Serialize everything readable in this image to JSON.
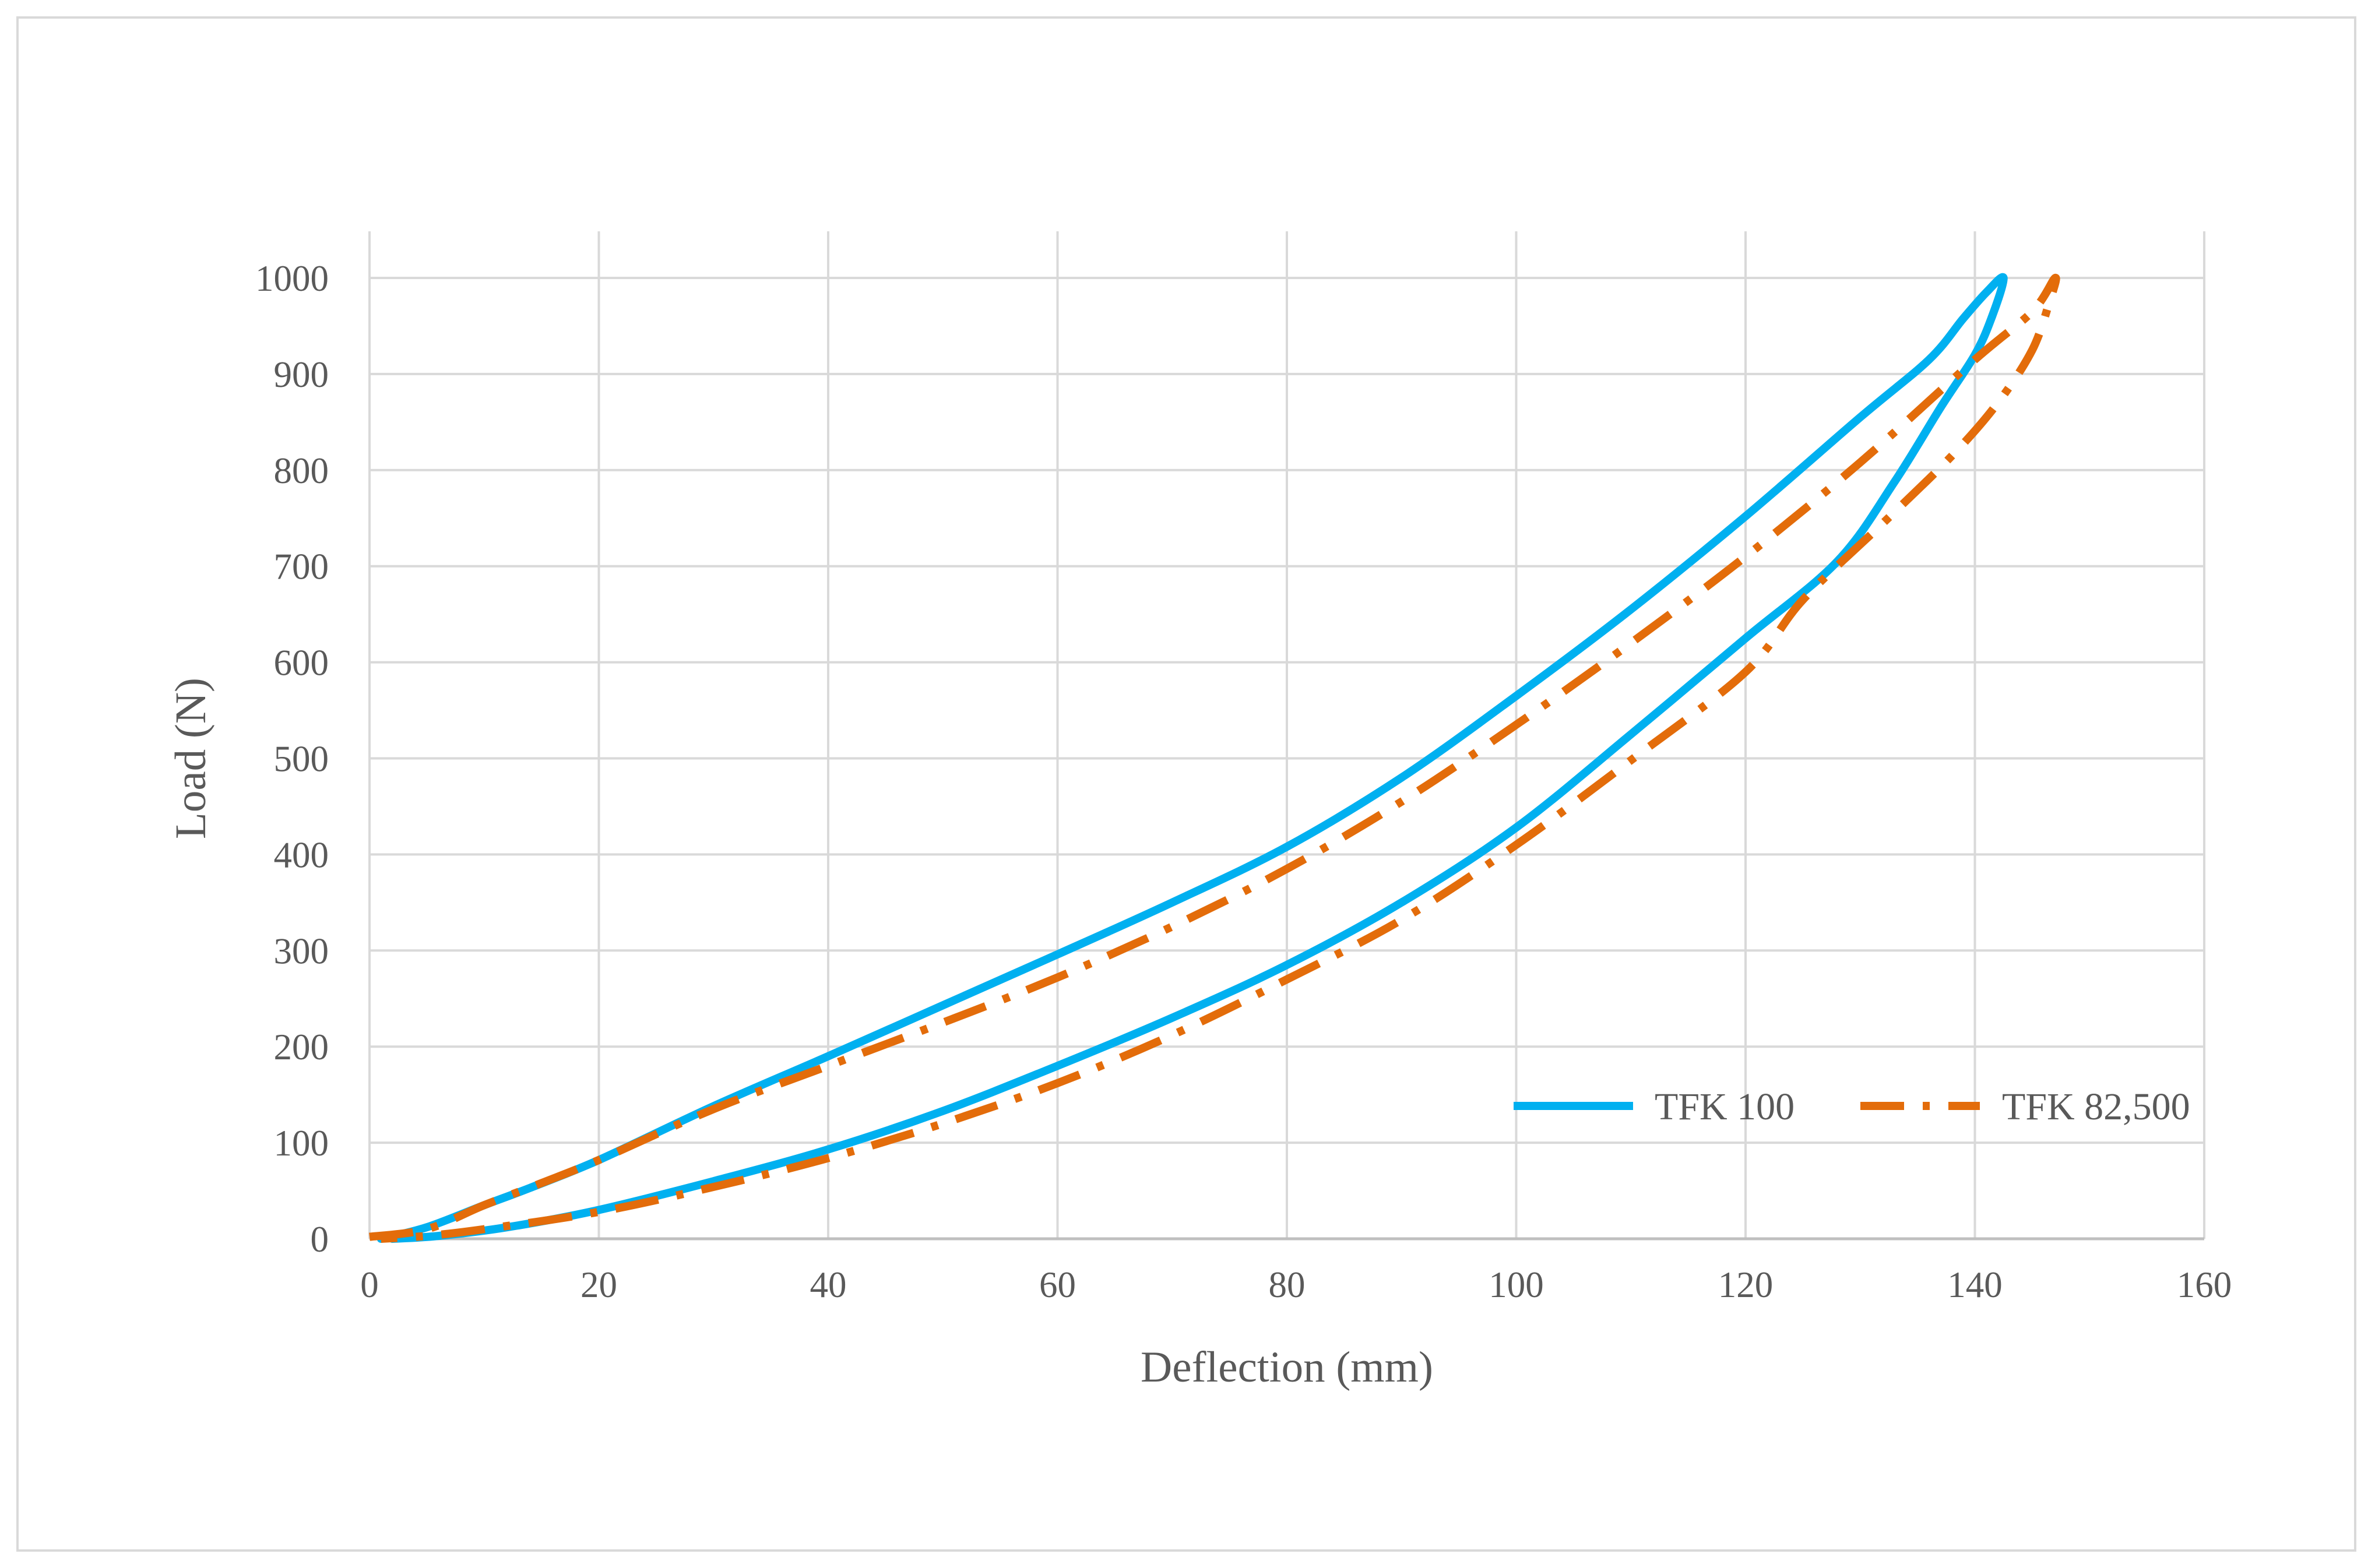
{
  "chart_data": {
    "type": "line",
    "title": "",
    "xlabel": "Deflection (mm)",
    "ylabel": "Load (N)",
    "xlim": [
      0,
      160
    ],
    "ylim": [
      0,
      1000
    ],
    "x_ticks": [
      0,
      20,
      40,
      60,
      80,
      100,
      120,
      140,
      160
    ],
    "y_ticks": [
      0,
      100,
      200,
      300,
      400,
      500,
      600,
      700,
      800,
      900,
      1000
    ],
    "grid": true,
    "legend_position": "bottom-right",
    "series": [
      {
        "name": "TFK 100",
        "color": "#00b0f0",
        "line_style": "solid",
        "x": [
          1,
          5,
          10,
          14,
          20,
          30,
          40,
          50,
          60,
          70,
          80,
          90,
          100,
          110,
          120,
          130,
          136,
          139,
          141,
          142.5,
          141.5,
          140,
          137,
          133,
          128,
          120,
          110,
          100,
          90,
          80,
          70,
          60,
          50,
          40,
          30,
          20,
          12,
          6,
          2
        ],
        "y": [
          0,
          12,
          35,
          53,
          82,
          138,
          190,
          243,
          296,
          350,
          408,
          480,
          565,
          655,
          752,
          855,
          915,
          958,
          985,
          1000,
          960,
          920,
          865,
          788,
          705,
          625,
          525,
          428,
          350,
          285,
          230,
          180,
          133,
          93,
          60,
          30,
          12,
          3,
          0
        ]
      },
      {
        "name": "TFK 82,500",
        "color": "#e36c0a",
        "line_style": "dash-dot",
        "x": [
          0,
          5,
          10,
          15,
          20,
          30,
          40,
          50,
          60,
          70,
          80,
          90,
          100,
          110,
          120,
          130,
          140,
          145,
          147,
          146.5,
          145,
          142,
          138,
          132,
          125,
          120,
          110,
          100,
          90,
          80,
          70,
          60,
          50,
          40,
          30,
          20,
          10,
          5,
          1
        ],
        "y": [
          2,
          10,
          35,
          58,
          82,
          135,
          180,
          225,
          272,
          325,
          385,
          455,
          535,
          620,
          710,
          808,
          915,
          965,
          1000,
          975,
          925,
          870,
          815,
          745,
          665,
          590,
          498,
          410,
          332,
          270,
          212,
          162,
          120,
          84,
          54,
          28,
          10,
          3,
          0
        ]
      }
    ]
  }
}
